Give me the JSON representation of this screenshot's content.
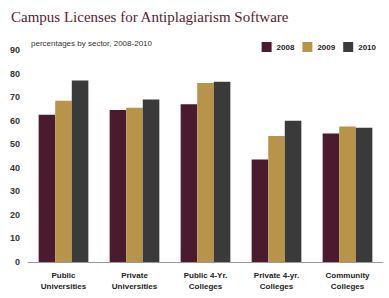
{
  "chart_data": {
    "type": "bar",
    "title": "Campus Licenses for Antiplagiarism Software",
    "subtitle": "percentages by sector, 2008-2010",
    "categories": [
      "Public Universities",
      "Private Universities",
      "Public 4-Yr. Colleges",
      "Private 4-yr. Colleges",
      "Community Colleges"
    ],
    "series": [
      {
        "name": "2008",
        "color": "#4a1a2e",
        "values": [
          62.5,
          64.5,
          67,
          43.5,
          54.5
        ]
      },
      {
        "name": "2009",
        "color": "#b8944a",
        "values": [
          68.5,
          65.5,
          76,
          53.5,
          57.5
        ]
      },
      {
        "name": "2010",
        "color": "#3a3a3a",
        "values": [
          77,
          69,
          76.5,
          60,
          57
        ]
      }
    ],
    "ylim": [
      0,
      90
    ],
    "yticks": [
      0,
      10,
      20,
      30,
      40,
      50,
      60,
      70,
      80,
      90
    ],
    "grid": false,
    "legend": "top-right"
  }
}
